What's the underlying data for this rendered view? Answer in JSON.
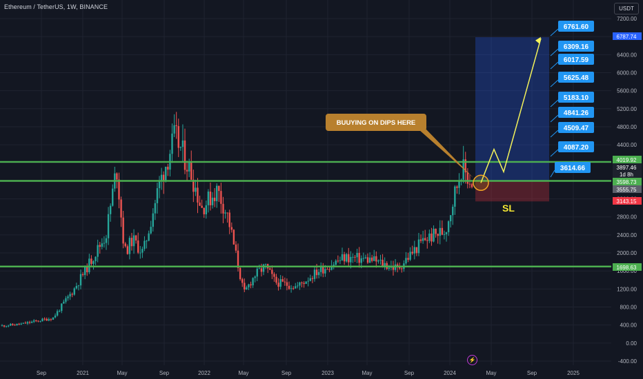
{
  "header": {
    "symbol_title": "Ethereum / TetherUS, 1W, BINANCE",
    "currency": "USDT"
  },
  "icons": {
    "bolt": "lightning-icon"
  },
  "colors": {
    "background": "#131722",
    "up": "#26a69a",
    "down": "#ef5350",
    "support": "#4caf50",
    "tag_blue": "#2196f3",
    "arrow": "#f5f35a"
  },
  "chart_data": {
    "type": "candlestick",
    "ylim": [
      -400,
      7200
    ],
    "y_ticks": [
      7200,
      6800,
      6400,
      6000,
      5600,
      5200,
      4800,
      4400,
      4000,
      3600,
      3200,
      2800,
      2400,
      2000,
      1600,
      1200,
      800,
      400,
      0,
      -400
    ],
    "y_tick_labels": [
      "7200.00",
      "6800.00",
      "6400.00",
      "6000.00",
      "5600.00",
      "5200.00",
      "4800.00",
      "4400.00",
      "4000.00",
      "3600.00",
      "3200.00",
      "2800.00",
      "2400.00",
      "2000.00",
      "1600.00",
      "1200.00",
      "800.00",
      "400.00",
      "0.00",
      "-400.00"
    ],
    "x_tick_labels": [
      "Sep",
      "2021",
      "May",
      "Sep",
      "2022",
      "May",
      "Sep",
      "2023",
      "May",
      "Sep",
      "2024",
      "May",
      "Sep",
      "2025"
    ],
    "price_path": [
      {
        "t": 0,
        "p": 380
      },
      {
        "t": 0.04,
        "p": 420
      },
      {
        "t": 0.1,
        "p": 560
      },
      {
        "t": 0.14,
        "p": 1200
      },
      {
        "t": 0.17,
        "p": 1800
      },
      {
        "t": 0.2,
        "p": 2400
      },
      {
        "t": 0.22,
        "p": 3900
      },
      {
        "t": 0.235,
        "p": 2000
      },
      {
        "t": 0.25,
        "p": 2300
      },
      {
        "t": 0.27,
        "p": 2000
      },
      {
        "t": 0.3,
        "p": 3500
      },
      {
        "t": 0.33,
        "p": 4600
      },
      {
        "t": 0.36,
        "p": 3800
      },
      {
        "t": 0.38,
        "p": 3000
      },
      {
        "t": 0.41,
        "p": 3400
      },
      {
        "t": 0.43,
        "p": 2800
      },
      {
        "t": 0.46,
        "p": 1100
      },
      {
        "t": 0.48,
        "p": 1500
      },
      {
        "t": 0.5,
        "p": 1700
      },
      {
        "t": 0.52,
        "p": 1350
      },
      {
        "t": 0.56,
        "p": 1250
      },
      {
        "t": 0.6,
        "p": 1600
      },
      {
        "t": 0.65,
        "p": 1900
      },
      {
        "t": 0.7,
        "p": 1850
      },
      {
        "t": 0.75,
        "p": 1650
      },
      {
        "t": 0.8,
        "p": 2300
      },
      {
        "t": 0.84,
        "p": 2500
      },
      {
        "t": 0.87,
        "p": 3900
      },
      {
        "t": 0.89,
        "p": 3556
      }
    ],
    "horizontal_levels": [
      4019.92,
      3598.73,
      1698.63
    ],
    "level_tags": [
      {
        "value": "4019.92",
        "bg": "#4caf50",
        "fg": "#ffffff"
      },
      {
        "value": "3897.46",
        "bg": "#1e222d",
        "fg": "#ffffff"
      },
      {
        "value": "1d 8h",
        "bg": "#1e222d",
        "fg": "#ffffff"
      },
      {
        "value": "3598.73",
        "bg": "#4caf50",
        "fg": "#ffffff"
      },
      {
        "value": "3555.75",
        "bg": "#5d606b",
        "fg": "#ffffff"
      },
      {
        "value": "3143.15",
        "bg": "#f23645",
        "fg": "#ffffff"
      },
      {
        "value": "1698.63",
        "bg": "#4caf50",
        "fg": "#ffffff"
      },
      {
        "value": "6787.74",
        "bg": "#2962ff",
        "fg": "#ffffff"
      }
    ],
    "target_labels": [
      "6761.60",
      "6309.16",
      "6017.59",
      "5625.48",
      "5183.10",
      "4841.26",
      "4509.47",
      "4087.20",
      "3614.66"
    ],
    "target_values": [
      6761.6,
      6309.16,
      6017.59,
      5625.48,
      5183.1,
      4841.26,
      4509.47,
      4087.2,
      3614.66
    ],
    "position": {
      "entry": 3598.73,
      "target": 6787.74,
      "stop": 3143.15
    },
    "projection": [
      3555,
      4300,
      3800,
      6761.6
    ],
    "annotations": {
      "callout": "BUUYING ON DIPS HERE",
      "stop_label": "SL"
    }
  }
}
